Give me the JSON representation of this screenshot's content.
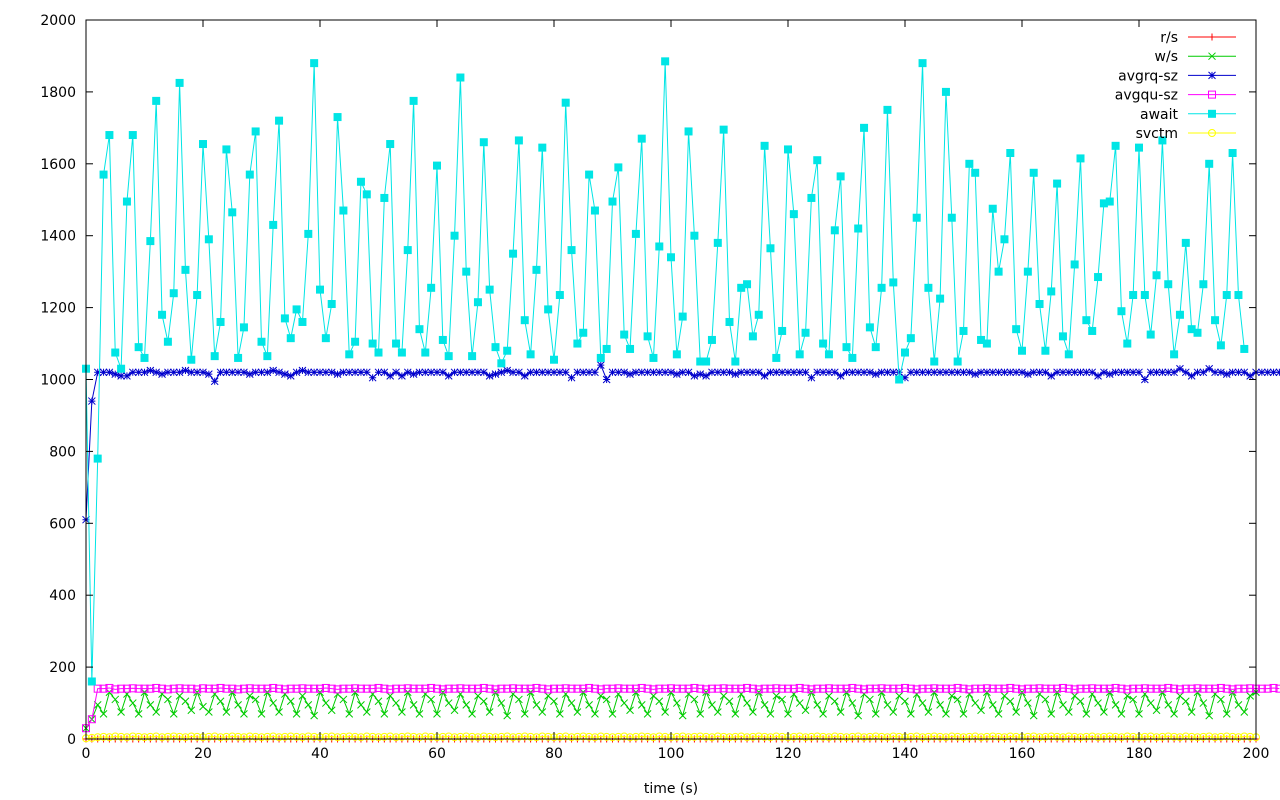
{
  "chart_data": {
    "type": "line",
    "xlabel": "time (s)",
    "ylabel": "",
    "xlim": [
      0,
      200
    ],
    "ylim": [
      0,
      2000
    ],
    "xticks": [
      0,
      20,
      40,
      60,
      80,
      100,
      120,
      140,
      160,
      180,
      200
    ],
    "yticks": [
      0,
      200,
      400,
      600,
      800,
      1000,
      1200,
      1400,
      1600,
      1800,
      2000
    ],
    "legend_position": "top-right",
    "grid": false,
    "series": [
      {
        "name": "r/s",
        "color": "#ff0000",
        "marker": "plus",
        "values": [
          0,
          0,
          0,
          0,
          0,
          0,
          0,
          0,
          0,
          0,
          0,
          0,
          0,
          0,
          0,
          0,
          0,
          0,
          0,
          0,
          0,
          0,
          0,
          0,
          0,
          0,
          0,
          0,
          0,
          0,
          0,
          0,
          0,
          0,
          0,
          0,
          0,
          0,
          0,
          0,
          0,
          0,
          0,
          0,
          0,
          0,
          0,
          0,
          0,
          0,
          0,
          0,
          0,
          0,
          0,
          0,
          0,
          0,
          0,
          0,
          0,
          0,
          0,
          0,
          0,
          0,
          0,
          0,
          0,
          0,
          0,
          0,
          0,
          0,
          0,
          0,
          0,
          0,
          0,
          0,
          0,
          0,
          0,
          0,
          0,
          0,
          0,
          0,
          0,
          0,
          0,
          0,
          0,
          0,
          0,
          0,
          0,
          0,
          0,
          0,
          0,
          0,
          0,
          0,
          0,
          0,
          0,
          0,
          0,
          0,
          0,
          0,
          0,
          0,
          0,
          0,
          0,
          0,
          0,
          0,
          0,
          0,
          0,
          0,
          0,
          0,
          0,
          0,
          0,
          0,
          0,
          0,
          0,
          0,
          0,
          0,
          0,
          0,
          0,
          0,
          0,
          0,
          0,
          0,
          0,
          0,
          0,
          0,
          0,
          0,
          0,
          0,
          0,
          0,
          0,
          0,
          0,
          0,
          0,
          0,
          0,
          0,
          0,
          0,
          0,
          0,
          0,
          0,
          0,
          0,
          0,
          0,
          0,
          0,
          0,
          0,
          0,
          0,
          0,
          0,
          0,
          0,
          0,
          0,
          0,
          0,
          0,
          0,
          0,
          0,
          0,
          0,
          0,
          0,
          0,
          0,
          0,
          0,
          0,
          0,
          0
        ]
      },
      {
        "name": "w/s",
        "color": "#00cc00",
        "marker": "cross",
        "values": [
          30,
          55,
          95,
          70,
          130,
          110,
          75,
          125,
          100,
          70,
          130,
          95,
          75,
          125,
          110,
          70,
          120,
          105,
          80,
          130,
          90,
          75,
          125,
          105,
          75,
          130,
          95,
          70,
          120,
          110,
          70,
          130,
          100,
          75,
          125,
          105,
          70,
          120,
          95,
          65,
          130,
          100,
          80,
          125,
          110,
          70,
          130,
          95,
          75,
          125,
          105,
          70,
          120,
          100,
          75,
          130,
          95,
          70,
          125,
          110,
          70,
          130,
          100,
          80,
          125,
          95,
          70,
          120,
          105,
          75,
          130,
          100,
          65,
          125,
          110,
          70,
          130,
          95,
          75,
          120,
          105,
          70,
          125,
          100,
          75,
          130,
          95,
          70,
          120,
          110,
          70,
          125,
          100,
          80,
          130,
          95,
          70,
          120,
          105,
          75,
          130,
          100,
          65,
          125,
          110,
          70,
          130,
          95,
          75,
          120,
          105,
          70,
          125,
          100,
          75,
          130,
          95,
          70,
          120,
          110,
          70,
          125,
          100,
          80,
          130,
          95,
          70,
          120,
          105,
          75,
          130,
          100,
          65,
          125,
          110,
          70,
          130,
          95,
          75,
          120,
          105,
          70,
          125,
          100,
          75,
          130,
          95,
          70,
          120,
          110,
          70,
          125,
          100,
          80,
          130,
          95,
          70,
          120,
          105,
          75,
          130,
          100,
          65,
          125,
          110,
          70,
          130,
          95,
          75,
          120,
          105,
          70,
          125,
          100,
          75,
          130,
          95,
          70,
          120,
          110,
          70,
          125,
          100,
          80,
          130,
          95,
          70,
          120,
          105,
          75,
          130,
          100,
          65,
          125,
          110,
          70,
          130,
          95,
          75,
          120,
          130
        ]
      },
      {
        "name": "avgrq-sz",
        "color": "#0000cc",
        "marker": "star",
        "values": [
          610,
          940,
          1020,
          1020,
          1020,
          1015,
          1010,
          1010,
          1020,
          1020,
          1020,
          1025,
          1020,
          1015,
          1020,
          1020,
          1020,
          1025,
          1020,
          1020,
          1020,
          1015,
          995,
          1020,
          1020,
          1020,
          1020,
          1020,
          1015,
          1020,
          1020,
          1020,
          1025,
          1020,
          1015,
          1010,
          1020,
          1025,
          1020,
          1020,
          1020,
          1020,
          1020,
          1015,
          1020,
          1020,
          1020,
          1020,
          1020,
          1005,
          1020,
          1020,
          1010,
          1020,
          1010,
          1020,
          1015,
          1020,
          1020,
          1020,
          1020,
          1020,
          1010,
          1020,
          1020,
          1020,
          1020,
          1020,
          1020,
          1010,
          1015,
          1020,
          1025,
          1020,
          1020,
          1010,
          1020,
          1020,
          1020,
          1020,
          1020,
          1020,
          1020,
          1005,
          1020,
          1020,
          1020,
          1020,
          1040,
          1000,
          1020,
          1020,
          1020,
          1015,
          1020,
          1020,
          1020,
          1020,
          1020,
          1020,
          1020,
          1015,
          1020,
          1020,
          1010,
          1015,
          1010,
          1020,
          1020,
          1020,
          1020,
          1015,
          1020,
          1020,
          1020,
          1020,
          1010,
          1020,
          1020,
          1020,
          1020,
          1020,
          1020,
          1020,
          1005,
          1020,
          1020,
          1020,
          1020,
          1010,
          1020,
          1020,
          1020,
          1020,
          1020,
          1015,
          1020,
          1020,
          1020,
          1020,
          1005,
          1020,
          1020,
          1020,
          1020,
          1020,
          1020,
          1020,
          1020,
          1020,
          1020,
          1020,
          1015,
          1020,
          1020,
          1020,
          1020,
          1020,
          1020,
          1020,
          1020,
          1015,
          1020,
          1020,
          1020,
          1010,
          1020,
          1020,
          1020,
          1020,
          1020,
          1020,
          1020,
          1010,
          1020,
          1015,
          1020,
          1020,
          1020,
          1020,
          1020,
          1000,
          1020,
          1020,
          1020,
          1020,
          1020,
          1030,
          1020,
          1010,
          1020,
          1020,
          1030,
          1020,
          1020,
          1015,
          1020,
          1020,
          1020,
          1010,
          1020,
          1020,
          1020,
          1020,
          1020
        ]
      },
      {
        "name": "avgqu-sz",
        "color": "#ff00ff",
        "marker": "square-open",
        "values": [
          30,
          55,
          140,
          140,
          142,
          138,
          140,
          140,
          141,
          140,
          140,
          140,
          142,
          140,
          138,
          140,
          141,
          140,
          140,
          138,
          141,
          140,
          140,
          142,
          140,
          140,
          138,
          140,
          141,
          140,
          140,
          140,
          142,
          140,
          138,
          140,
          140,
          141,
          140,
          140,
          140,
          142,
          140,
          138,
          140,
          140,
          141,
          140,
          140,
          140,
          142,
          140,
          138,
          140,
          140,
          141,
          140,
          140,
          140,
          142,
          140,
          138,
          140,
          140,
          141,
          140,
          140,
          140,
          142,
          140,
          138,
          140,
          140,
          141,
          140,
          140,
          140,
          142,
          140,
          138,
          140,
          140,
          141,
          140,
          140,
          140,
          142,
          140,
          138,
          140,
          140,
          141,
          140,
          140,
          140,
          142,
          140,
          138,
          140,
          140,
          141,
          140,
          140,
          140,
          142,
          140,
          138,
          140,
          140,
          141,
          140,
          140,
          140,
          142,
          140,
          138,
          140,
          140,
          141,
          140,
          140,
          140,
          142,
          140,
          138,
          140,
          140,
          141,
          140,
          140,
          140,
          142,
          140,
          138,
          140,
          140,
          141,
          140,
          140,
          140,
          142,
          140,
          138,
          140,
          140,
          141,
          140,
          140,
          140,
          142,
          140,
          138,
          140,
          140,
          141,
          140,
          140,
          140,
          142,
          140,
          138,
          140,
          140,
          141,
          140,
          140,
          140,
          142,
          140,
          138,
          140,
          140,
          141,
          140,
          140,
          140,
          142,
          140,
          138,
          140,
          140,
          141,
          140,
          140,
          140,
          142,
          140,
          138,
          140,
          140,
          141,
          140,
          140,
          140,
          142,
          140,
          138,
          140,
          140,
          141,
          140,
          140,
          140,
          142,
          140
        ]
      },
      {
        "name": "await",
        "color": "#00e5e5",
        "marker": "square-filled",
        "values": [
          1030,
          160,
          780,
          1570,
          1680,
          1075,
          1030,
          1495,
          1680,
          1090,
          1060,
          1385,
          1775,
          1180,
          1105,
          1240,
          1825,
          1305,
          1055,
          1235,
          1655,
          1390,
          1065,
          1160,
          1640,
          1465,
          1060,
          1145,
          1570,
          1690,
          1105,
          1065,
          1430,
          1720,
          1170,
          1115,
          1195,
          1160,
          1405,
          1880,
          1250,
          1115,
          1210,
          1730,
          1470,
          1070,
          1105,
          1550,
          1515,
          1100,
          1075,
          1505,
          1655,
          1100,
          1075,
          1360,
          1775,
          1140,
          1075,
          1255,
          1595,
          1110,
          1065,
          1400,
          1840,
          1300,
          1065,
          1215,
          1660,
          1250,
          1090,
          1045,
          1080,
          1350,
          1665,
          1165,
          1070,
          1305,
          1645,
          1195,
          1055,
          1235,
          1770,
          1360,
          1100,
          1130,
          1570,
          1470,
          1060,
          1085,
          1495,
          1590,
          1125,
          1085,
          1405,
          1670,
          1120,
          1060,
          1370,
          1885,
          1340,
          1070,
          1175,
          1690,
          1400,
          1050,
          1050,
          1110,
          1380,
          1695,
          1160,
          1050,
          1255,
          1265,
          1120,
          1180,
          1650,
          1365,
          1060,
          1135,
          1640,
          1460,
          1070,
          1130,
          1505,
          1610,
          1100,
          1070,
          1415,
          1565,
          1090,
          1060,
          1420,
          1700,
          1145,
          1090,
          1255,
          1750,
          1270,
          1000,
          1075,
          1115,
          1450,
          1880,
          1255,
          1050,
          1225,
          1800,
          1450,
          1050,
          1135,
          1600,
          1575,
          1110,
          1100,
          1475,
          1300,
          1390,
          1630,
          1140,
          1080,
          1300,
          1575,
          1210,
          1080,
          1245,
          1545,
          1120,
          1070,
          1320,
          1615,
          1165,
          1135,
          1285,
          1490,
          1495,
          1650,
          1190,
          1100,
          1235,
          1645,
          1235,
          1125,
          1290,
          1665,
          1265,
          1070,
          1180,
          1380,
          1140,
          1130,
          1265,
          1600,
          1165,
          1095,
          1235,
          1630,
          1235,
          1085
        ]
      },
      {
        "name": "svctm",
        "color": "#ffff00",
        "marker": "circle-open",
        "values": [
          2,
          3,
          5,
          6,
          5,
          7,
          6,
          5,
          7,
          6,
          5,
          6,
          7,
          5,
          6,
          7,
          6,
          5,
          7,
          6,
          5,
          6,
          7,
          5,
          6,
          7,
          6,
          5,
          7,
          6,
          5,
          6,
          7,
          5,
          6,
          7,
          6,
          5,
          7,
          6,
          5,
          6,
          7,
          5,
          6,
          7,
          6,
          5,
          7,
          6,
          5,
          6,
          7,
          5,
          6,
          7,
          6,
          5,
          7,
          6,
          5,
          6,
          7,
          5,
          6,
          7,
          6,
          5,
          7,
          6,
          5,
          6,
          7,
          5,
          6,
          7,
          6,
          5,
          7,
          6,
          5,
          6,
          7,
          5,
          6,
          7,
          6,
          5,
          7,
          6,
          5,
          6,
          7,
          5,
          6,
          7,
          6,
          5,
          7,
          6,
          5,
          6,
          7,
          5,
          6,
          7,
          6,
          5,
          7,
          6,
          5,
          6,
          7,
          5,
          6,
          7,
          6,
          5,
          7,
          6,
          5,
          6,
          7,
          5,
          6,
          7,
          6,
          5,
          7,
          6,
          5,
          6,
          7,
          5,
          6,
          7,
          6,
          5,
          7,
          6,
          5,
          6,
          7,
          5,
          6,
          7,
          6,
          5,
          7,
          6,
          5,
          6,
          7,
          5,
          6,
          7,
          6,
          5,
          7,
          6,
          5,
          6,
          7,
          5,
          6,
          7,
          6,
          5,
          7,
          6,
          5,
          6,
          7,
          5,
          6,
          7,
          6,
          5,
          7,
          6,
          5,
          6,
          7,
          5,
          6,
          7,
          6,
          5,
          7,
          6,
          5,
          6,
          7,
          5,
          6,
          7,
          6,
          5,
          7,
          6,
          5
        ]
      }
    ]
  }
}
